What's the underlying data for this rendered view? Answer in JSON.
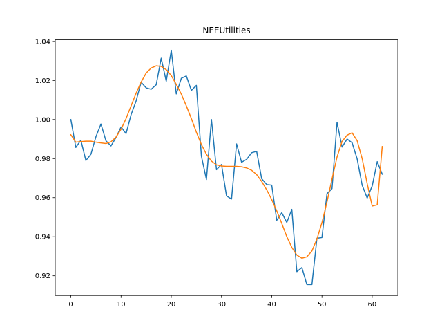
{
  "chart_data": {
    "type": "line",
    "title": "NEEUtilities",
    "xlabel": "",
    "ylabel": "",
    "xlim": [
      -3.1,
      65.1
    ],
    "ylim": [
      0.9099,
      1.0408
    ],
    "xticks": [
      0,
      10,
      20,
      30,
      40,
      50,
      60
    ],
    "xtick_labels": [
      "0",
      "10",
      "20",
      "30",
      "40",
      "50",
      "60"
    ],
    "yticks": [
      0.92,
      0.94,
      0.96,
      0.98,
      1.0,
      1.02,
      1.04
    ],
    "ytick_labels": [
      "0.92",
      "0.94",
      "0.96",
      "0.98",
      "1.00",
      "1.02",
      "1.04"
    ],
    "grid": false,
    "legend": "none",
    "series": [
      {
        "color": "#1f77b4",
        "x": [
          0,
          1,
          2,
          3,
          4,
          5,
          6,
          7,
          8,
          9,
          10,
          11,
          12,
          13,
          14,
          15,
          16,
          17,
          18,
          19,
          20,
          21,
          22,
          23,
          24,
          25,
          26,
          27,
          28,
          29,
          30,
          31,
          32,
          33,
          34,
          35,
          36,
          37,
          38,
          39,
          40,
          41,
          42,
          43,
          44,
          45,
          46,
          47,
          48,
          49,
          50,
          51,
          52,
          53,
          54,
          55,
          56,
          57,
          58,
          59,
          60,
          61,
          62
        ],
        "values": [
          1.0,
          0.9857,
          0.9894,
          0.979,
          0.9822,
          0.9912,
          0.9977,
          0.9891,
          0.9865,
          0.9908,
          0.9962,
          0.9928,
          1.0025,
          1.0095,
          1.0191,
          1.0162,
          1.0155,
          1.0178,
          1.0314,
          1.0196,
          1.0355,
          1.0131,
          1.0211,
          1.0223,
          1.0149,
          1.0175,
          0.9812,
          0.9693,
          1.0,
          0.9743,
          0.977,
          0.9609,
          0.9593,
          0.9875,
          0.9781,
          0.9796,
          0.983,
          0.9837,
          0.9697,
          0.9667,
          0.9664,
          0.9484,
          0.9523,
          0.9473,
          0.954,
          0.9221,
          0.9242,
          0.9155,
          0.9155,
          0.9392,
          0.9396,
          0.962,
          0.9646,
          0.9986,
          0.9859,
          0.99,
          0.9881,
          0.9799,
          0.9664,
          0.9598,
          0.966,
          0.9784,
          0.972
        ]
      },
      {
        "color": "#ff7f0e",
        "x": [
          0,
          1,
          2,
          3,
          4,
          5,
          6,
          7,
          8,
          9,
          10,
          11,
          12,
          13,
          14,
          15,
          16,
          17,
          18,
          19,
          20,
          21,
          22,
          23,
          24,
          25,
          26,
          27,
          28,
          29,
          30,
          31,
          32,
          33,
          34,
          35,
          36,
          37,
          38,
          39,
          40,
          41,
          42,
          43,
          44,
          45,
          46,
          47,
          48,
          49,
          50,
          51,
          52,
          53,
          54,
          55,
          56,
          57,
          58,
          59,
          60,
          61,
          62
        ],
        "values": [
          0.9922,
          0.9884,
          0.9887,
          0.9889,
          0.9889,
          0.9884,
          0.988,
          0.9877,
          0.9886,
          0.991,
          0.995,
          1.0005,
          1.007,
          1.0135,
          1.0192,
          1.0238,
          1.0264,
          1.0275,
          1.0272,
          1.0255,
          1.0225,
          1.018,
          1.013,
          1.007,
          1.0005,
          0.9935,
          0.9872,
          0.9822,
          0.9787,
          0.9768,
          0.9762,
          0.976,
          0.976,
          0.976,
          0.9758,
          0.9752,
          0.974,
          0.9718,
          0.9683,
          0.964,
          0.959,
          0.9532,
          0.9468,
          0.94,
          0.9345,
          0.9306,
          0.929,
          0.9297,
          0.9327,
          0.9388,
          0.9472,
          0.9578,
          0.9695,
          0.9808,
          0.9888,
          0.992,
          0.9932,
          0.9892,
          0.98,
          0.9672,
          0.9557,
          0.9563,
          0.9862
        ]
      }
    ]
  }
}
